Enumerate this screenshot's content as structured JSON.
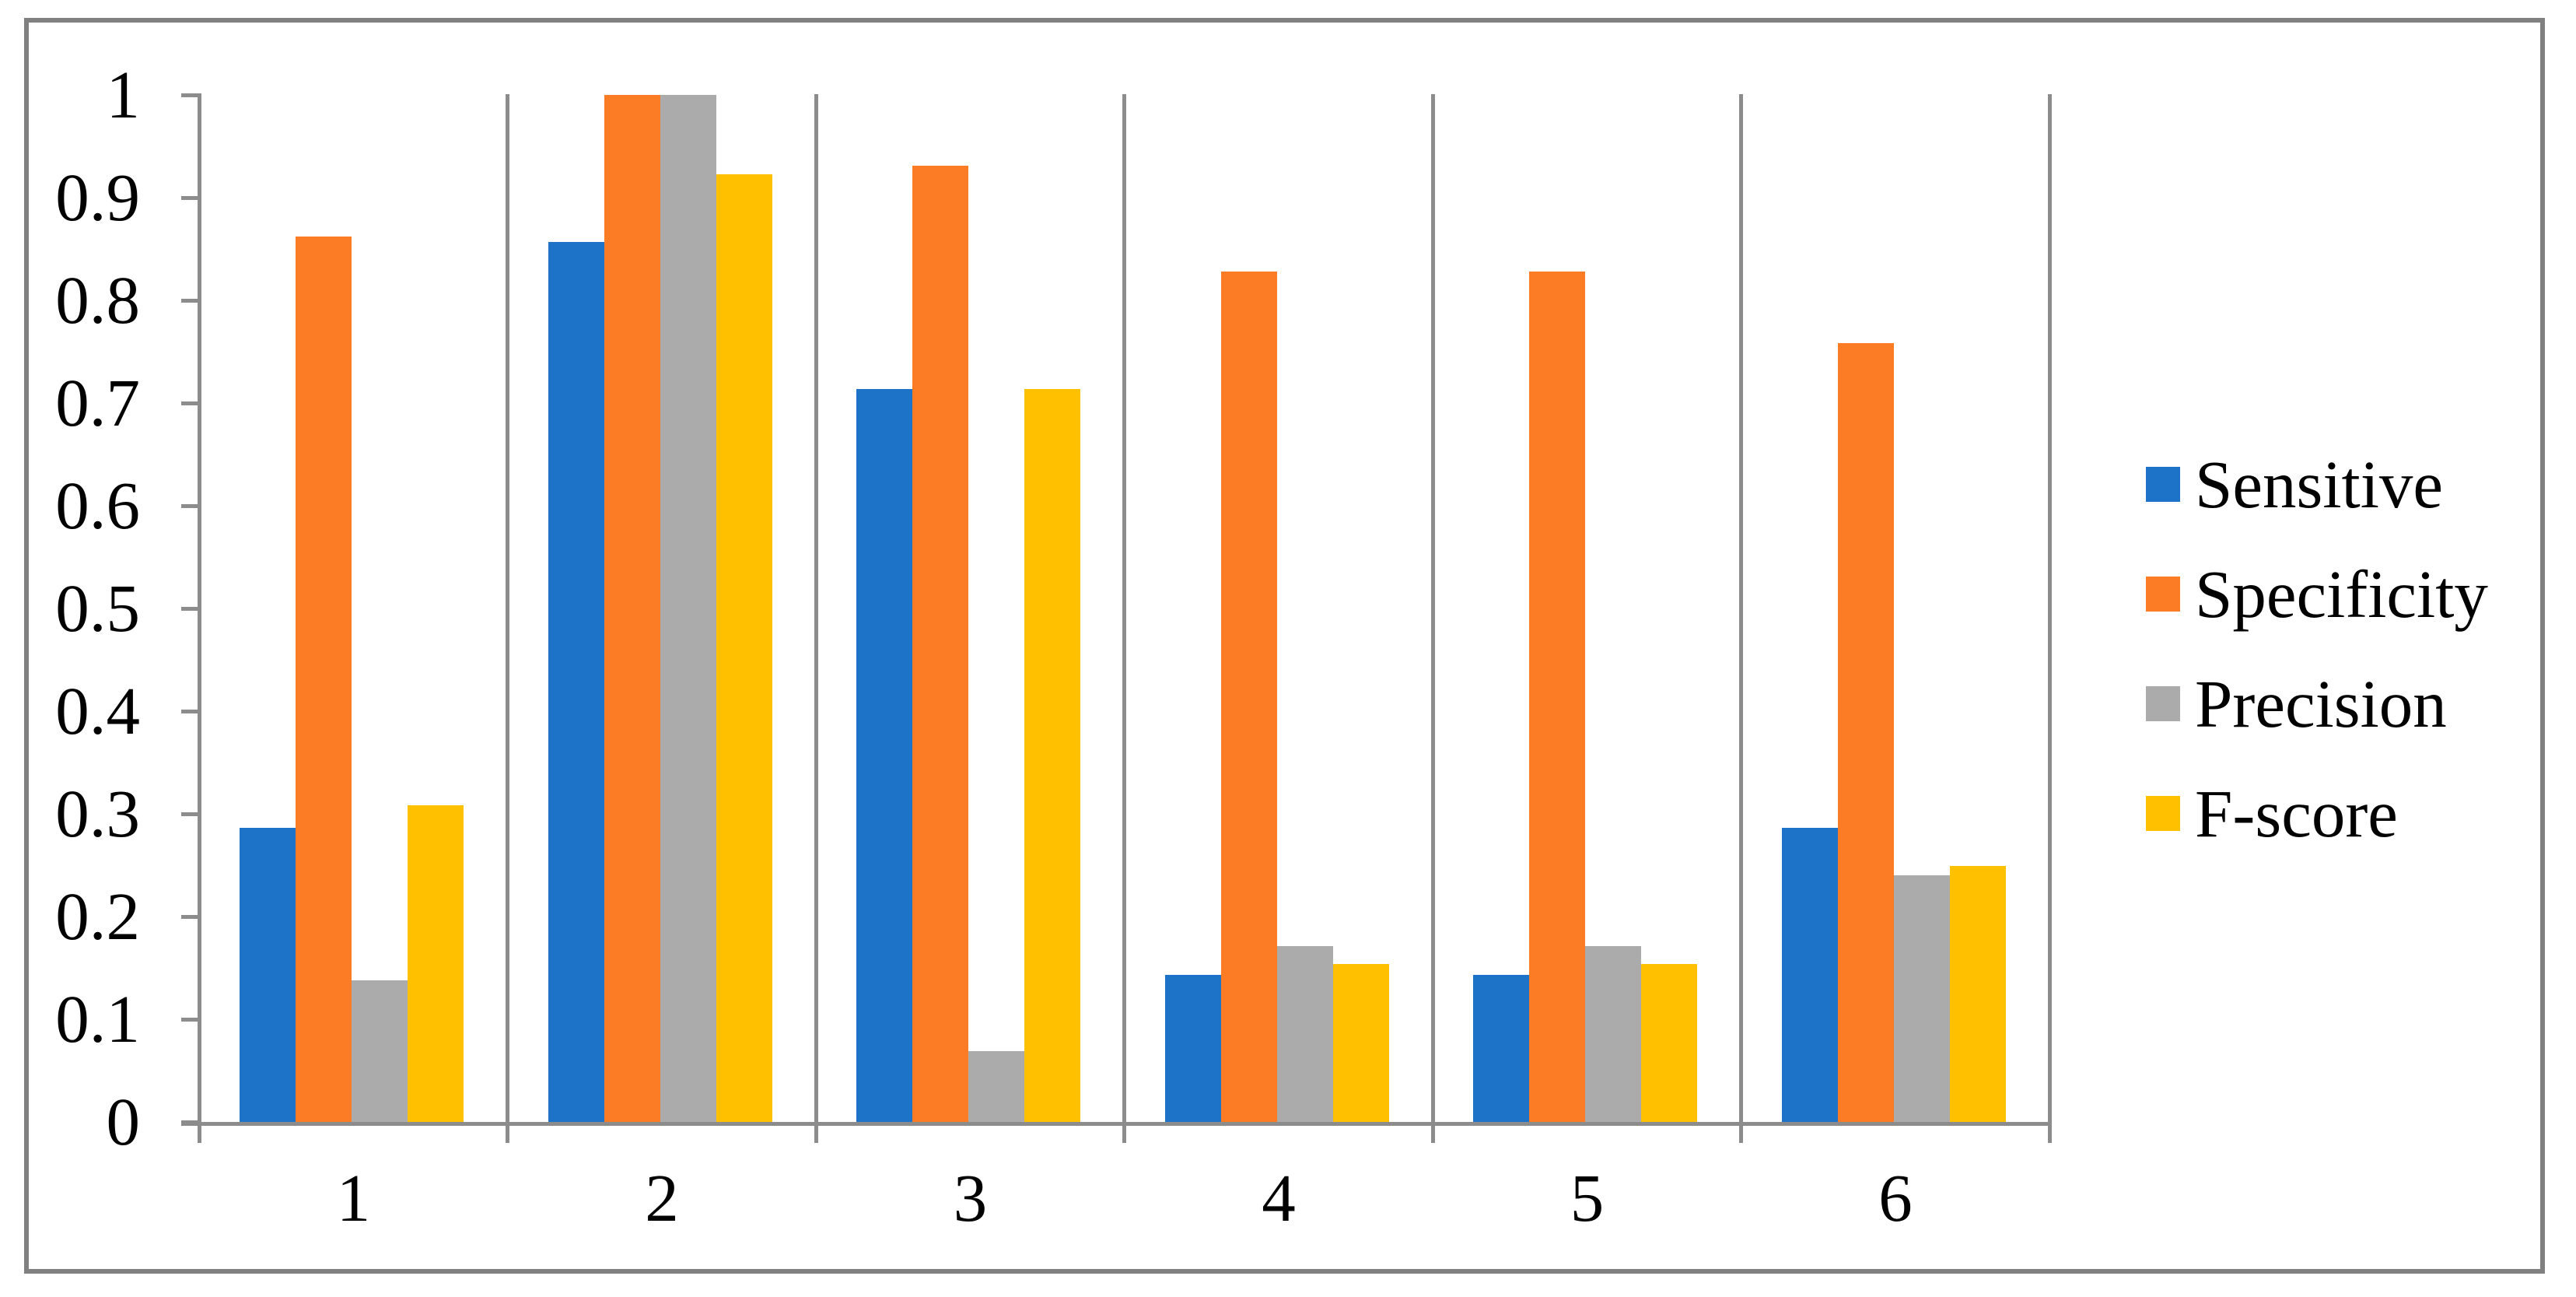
{
  "figure": {
    "background": "#FFFFFF",
    "border_color": "#808080",
    "axis_color": "#8C8C8C",
    "text_color": "#000000"
  },
  "chart_data": {
    "type": "bar",
    "title": "",
    "xlabel": "",
    "ylabel": "",
    "categories": [
      "1",
      "2",
      "3",
      "4",
      "5",
      "6"
    ],
    "series": [
      {
        "name": "Sensitive",
        "color": "#1D73C7",
        "values": [
          0.286,
          0.857,
          0.714,
          0.143,
          0.143,
          0.286
        ]
      },
      {
        "name": "Specificity",
        "color": "#FB7C24",
        "values": [
          0.862,
          1.0,
          0.931,
          0.828,
          0.828,
          0.758
        ]
      },
      {
        "name": "Precision",
        "color": "#ABABAB",
        "values": [
          0.138,
          1.0,
          0.069,
          0.171,
          0.171,
          0.24
        ]
      },
      {
        "name": "F-score",
        "color": "#FFC000",
        "values": [
          0.308,
          0.923,
          0.714,
          0.154,
          0.154,
          0.249
        ]
      }
    ],
    "ylim": [
      0,
      1
    ],
    "yticks": [
      0,
      0.1,
      0.2,
      0.3,
      0.4,
      0.5,
      0.6,
      0.7,
      0.8,
      0.9,
      1
    ],
    "ytick_labels": [
      "0",
      "0.1",
      "0.2",
      "0.3",
      "0.4",
      "0.5",
      "0.6",
      "0.7",
      "0.8",
      "0.9",
      "1"
    ],
    "grid": "vertical-category-separators",
    "legend_position": "right-middle"
  }
}
